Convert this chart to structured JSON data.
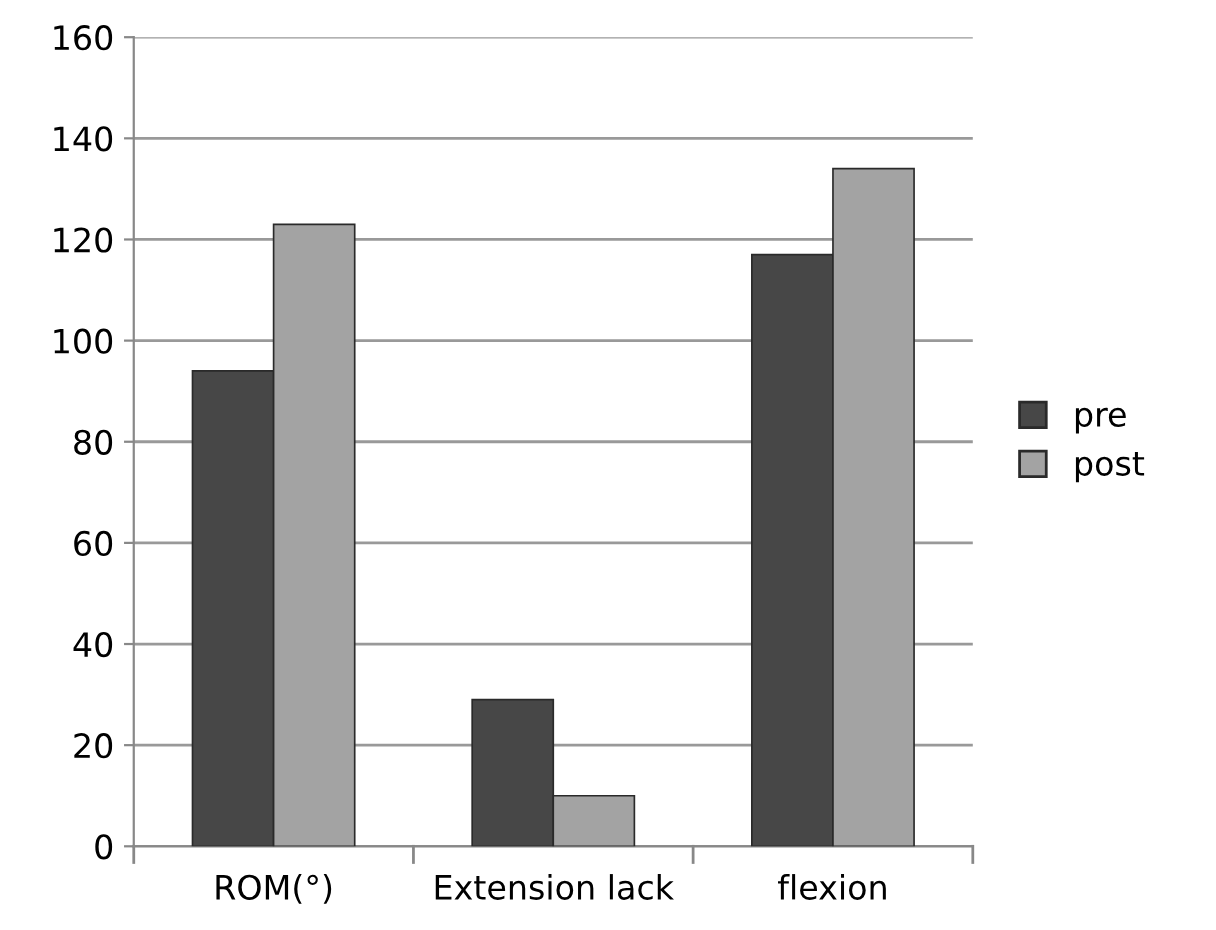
{
  "chart_data": {
    "type": "bar",
    "categories": [
      "ROM(°)",
      "Extension lack",
      "flexion"
    ],
    "series": [
      {
        "name": "pre",
        "color": "#474747",
        "values": [
          94,
          29,
          117
        ]
      },
      {
        "name": "post",
        "color": "#a3a3a3",
        "values": [
          123,
          10,
          134
        ]
      }
    ],
    "ylim": [
      0,
      160
    ],
    "yticks": [
      0,
      20,
      40,
      60,
      80,
      100,
      120,
      140,
      160
    ],
    "grid": "y",
    "legend": "right"
  }
}
